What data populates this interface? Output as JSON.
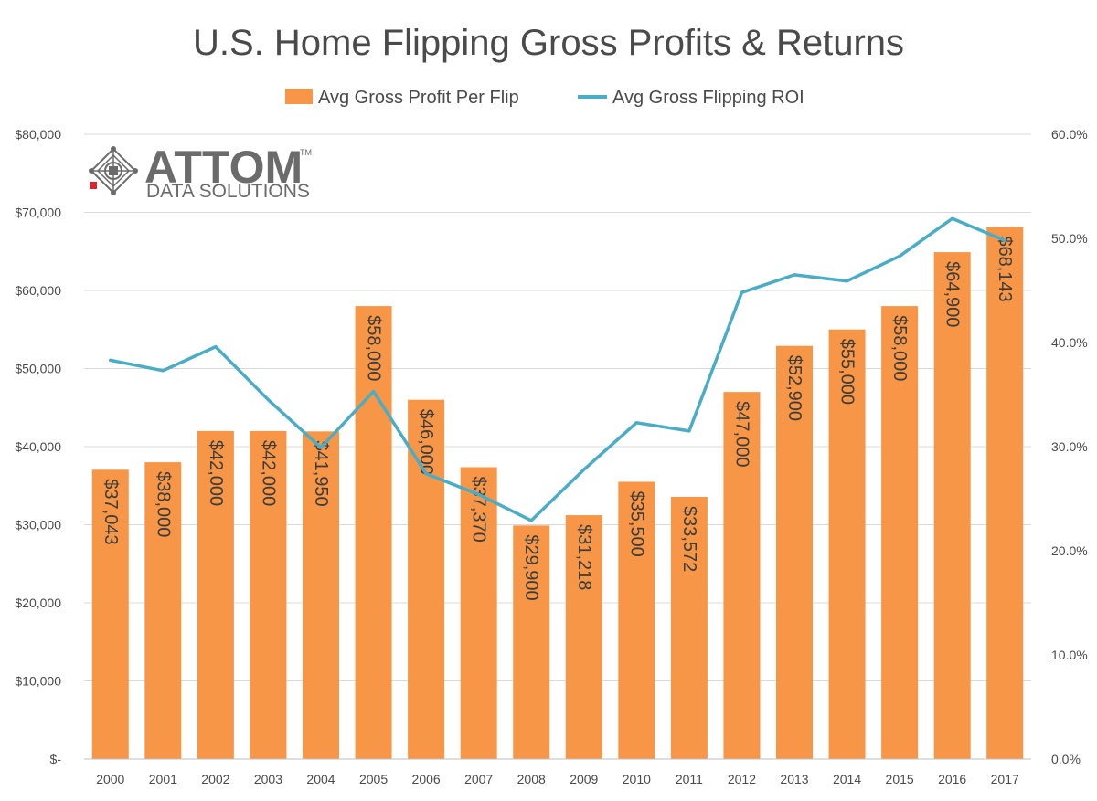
{
  "chart_data": {
    "type": "bar",
    "title": "U.S. Home Flipping Gross Profits & Returns",
    "categories": [
      "2000",
      "2001",
      "2002",
      "2003",
      "2004",
      "2005",
      "2006",
      "2007",
      "2008",
      "2009",
      "2010",
      "2011",
      "2012",
      "2013",
      "2014",
      "2015",
      "2016",
      "2017"
    ],
    "series": [
      {
        "name": "Avg Gross Profit Per Flip",
        "type": "bar",
        "axis": "left",
        "color": "#f79646",
        "values": [
          37043,
          38000,
          42000,
          42000,
          41950,
          58000,
          46000,
          37370,
          29900,
          31218,
          35500,
          33572,
          47000,
          52900,
          55000,
          58000,
          64900,
          68143
        ],
        "labels": [
          "$37,043",
          "$38,000",
          "$42,000",
          "$42,000",
          "$41,950",
          "$58,000",
          "$46,000",
          "$37,370",
          "$29,900",
          "$31,218",
          "$35,500",
          "$33,572",
          "$47,000",
          "$52,900",
          "$55,000",
          "$58,000",
          "$64,900",
          "$68,143"
        ]
      },
      {
        "name": "Avg Gross Flipping ROI",
        "type": "line",
        "axis": "right",
        "color": "#4bacc6",
        "values": [
          38.3,
          37.3,
          39.6,
          34.5,
          29.9,
          35.3,
          27.4,
          25.4,
          22.9,
          27.8,
          32.3,
          31.5,
          44.8,
          46.5,
          45.9,
          48.3,
          51.9,
          49.8
        ]
      }
    ],
    "left_axis": {
      "min": 0,
      "max": 80000,
      "ticks": [
        "$-",
        "$10,000",
        "$20,000",
        "$30,000",
        "$40,000",
        "$50,000",
        "$60,000",
        "$70,000",
        "$80,000"
      ]
    },
    "right_axis": {
      "min": 0,
      "max": 60,
      "ticks": [
        "0.0%",
        "10.0%",
        "20.0%",
        "30.0%",
        "40.0%",
        "50.0%",
        "60.0%"
      ]
    },
    "grid": true,
    "legend_position": "top"
  },
  "logo": {
    "main": "ATTOM",
    "trademark": "TM",
    "sub": "DATA SOLUTIONS"
  }
}
